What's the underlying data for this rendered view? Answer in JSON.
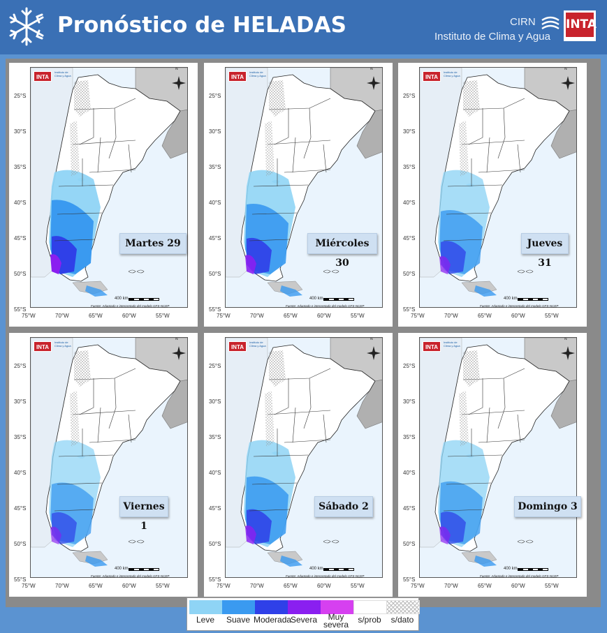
{
  "header": {
    "title": "Pronóstico de HELADAS",
    "org_short": "CIRN",
    "org_long": "Instituto de Clima y Agua",
    "logo_text": "INTA",
    "background_color": "#3a70b5"
  },
  "map_common": {
    "logo_text": "INTA",
    "institute_small": "Instituto de Clima y Agua",
    "lat_labels": [
      "25°S",
      "30°S",
      "35°S",
      "40°S",
      "45°S",
      "50°S",
      "55°S"
    ],
    "lon_labels": [
      "75°W",
      "70°W",
      "65°W",
      "60°W",
      "55°W"
    ],
    "scale_text": "400 km",
    "source_text": "Fuente: Adaptado e interpretado del modelo GFS-NCEP",
    "north_label": "N"
  },
  "panels": [
    {
      "day": "Martes 29",
      "intensity": 1.0
    },
    {
      "day": "Miércoles 30",
      "intensity": 0.85
    },
    {
      "day": "Jueves 31",
      "intensity": 0.6
    },
    {
      "day": "Viernes 1",
      "intensity": 0.5
    },
    {
      "day": "Sábado 2",
      "intensity": 0.75
    },
    {
      "day": "Domingo 3",
      "intensity": 0.55
    }
  ],
  "legend": [
    {
      "label": "Leve",
      "color": "#8fd4f5"
    },
    {
      "label": "Suave",
      "color": "#3a9af0"
    },
    {
      "label": "Moderada",
      "color": "#2f40e8"
    },
    {
      "label": "Severa",
      "color": "#8a1ff0"
    },
    {
      "label": "Muy severa",
      "color": "#d640f0"
    },
    {
      "label": "s/prob",
      "color": "#ffffff"
    },
    {
      "label": "s/dato",
      "color": "hatch"
    }
  ]
}
